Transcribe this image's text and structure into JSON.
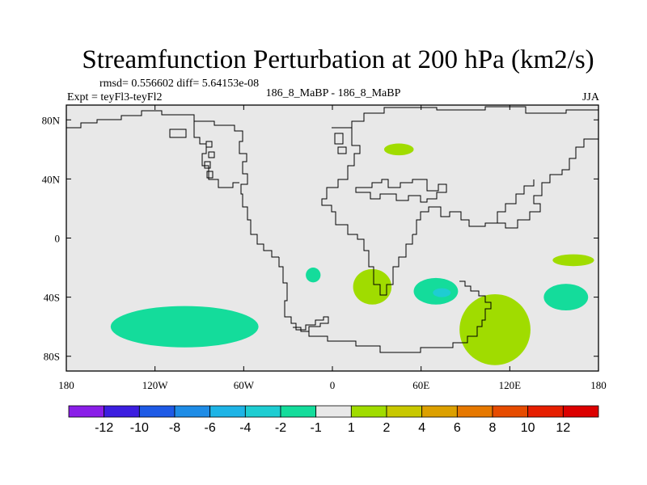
{
  "chart_data": {
    "type": "contour-map",
    "title": "Streamfunction Perturbation at 200 hPa (km2/s)",
    "stats_line": "rmsd= 0.556602 diff= 5.64153e-08",
    "left_label": "Expt = teyFl3-teyFl2",
    "center_label": "186_8_MaBP - 186_8_MaBP",
    "right_label": "JJA",
    "x_axis": {
      "range": [
        -180,
        180
      ],
      "ticks": [
        {
          "value": -180,
          "label": "180"
        },
        {
          "value": -120,
          "label": "120W"
        },
        {
          "value": -60,
          "label": "60W"
        },
        {
          "value": 0,
          "label": "0"
        },
        {
          "value": 60,
          "label": "60E"
        },
        {
          "value": 120,
          "label": "120E"
        },
        {
          "value": 180,
          "label": "180"
        }
      ]
    },
    "y_axis": {
      "range": [
        -90,
        90
      ],
      "ticks": [
        {
          "value": 80,
          "label": "80N"
        },
        {
          "value": 40,
          "label": "40N"
        },
        {
          "value": 0,
          "label": "0"
        },
        {
          "value": -40,
          "label": "40S"
        },
        {
          "value": -80,
          "label": "80S"
        }
      ]
    },
    "background_color": "#e8e8e8",
    "color_levels": [
      "-12",
      "-10",
      "-8",
      "-6",
      "-4",
      "-2",
      "-1",
      "1",
      "2",
      "4",
      "6",
      "8",
      "10",
      "12"
    ],
    "color_bins": [
      "#8a1ee8",
      "#3c1ee0",
      "#1e5ae6",
      "#1e8ce6",
      "#1eb4e6",
      "#1ecdd2",
      "#14dc9b",
      "#e8e8e8",
      "#a0dc00",
      "#c8c800",
      "#dca000",
      "#e67800",
      "#e64b00",
      "#e61e00",
      "#dc0000"
    ],
    "anomalies": [
      {
        "lon": 45,
        "lat": 60,
        "rlon": 10,
        "rlat": 4,
        "bin": 8
      },
      {
        "lon": 163,
        "lat": -15,
        "rlon": 14,
        "rlat": 4,
        "bin": 8
      },
      {
        "lon": -13,
        "lat": -25,
        "rlon": 5,
        "rlat": 5,
        "bin": 6
      },
      {
        "lon": 27,
        "lat": -33,
        "rlon": 13,
        "rlat": 12,
        "bin": 8
      },
      {
        "lon": 70,
        "lat": -36,
        "rlon": 15,
        "rlat": 9,
        "bin": 6
      },
      {
        "lon": 74,
        "lat": -37,
        "rlon": 6,
        "rlat": 3,
        "bin": 5
      },
      {
        "lon": 158,
        "lat": -40,
        "rlon": 15,
        "rlat": 9,
        "bin": 6
      },
      {
        "lon": 110,
        "lat": -62,
        "rlon": 24,
        "rlat": 24,
        "bin": 8
      },
      {
        "lon": -100,
        "lat": -60,
        "rlon": 50,
        "rlat": 14,
        "bin": 6
      }
    ]
  }
}
